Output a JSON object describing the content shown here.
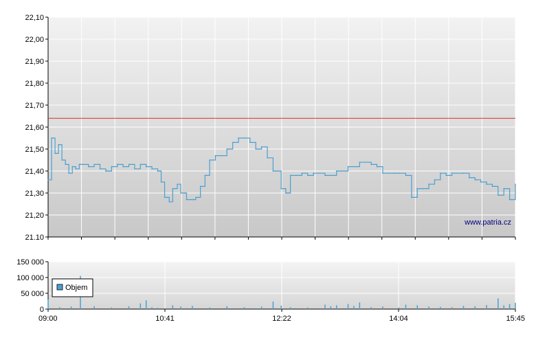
{
  "chart_data": [
    {
      "type": "line",
      "ylim": [
        21.1,
        22.1
      ],
      "y_ticks": [
        "22,10",
        "22,00",
        "21,90",
        "21,80",
        "21,70",
        "21,60",
        "21,50",
        "21,40",
        "21,30",
        "21,20",
        "21.10"
      ],
      "x_ticks": [
        "09:00",
        "10:41",
        "12:22",
        "14:04",
        "15:45"
      ],
      "reference_line": {
        "value": 21.64,
        "color": "#d03030"
      },
      "series_color": "#4aa0d0",
      "grid": true,
      "watermark": "www.patria.cz",
      "series": [
        {
          "x": [
            "09:00",
            "09:03",
            "09:06",
            "09:09",
            "09:12",
            "09:15",
            "09:18",
            "09:21",
            "09:24",
            "09:27",
            "09:30",
            "09:35",
            "09:40",
            "09:45",
            "09:50",
            "09:55",
            "10:00",
            "10:05",
            "10:10",
            "10:15",
            "10:20",
            "10:25",
            "10:30",
            "10:35",
            "10:38",
            "10:41",
            "10:45",
            "10:48",
            "10:52",
            "10:55",
            "11:00",
            "11:05",
            "11:08",
            "11:12",
            "11:16",
            "11:20",
            "11:25",
            "11:30",
            "11:35",
            "11:40",
            "11:45",
            "11:50",
            "11:55",
            "12:00",
            "12:05",
            "12:10",
            "12:15",
            "12:22",
            "12:26",
            "12:30",
            "12:35",
            "12:40",
            "12:45",
            "12:50",
            "13:00",
            "13:10",
            "13:20",
            "13:30",
            "13:40",
            "13:45",
            "13:50",
            "14:00",
            "14:04",
            "14:10",
            "14:15",
            "14:20",
            "14:25",
            "14:30",
            "14:35",
            "14:40",
            "14:45",
            "14:50",
            "15:00",
            "15:05",
            "15:10",
            "15:15",
            "15:20",
            "15:25",
            "15:30",
            "15:35",
            "15:40",
            "15:45"
          ],
          "values": [
            21.36,
            21.55,
            21.48,
            21.52,
            21.45,
            21.43,
            21.39,
            21.42,
            21.41,
            21.43,
            21.43,
            21.42,
            21.43,
            21.41,
            21.4,
            21.42,
            21.43,
            21.42,
            21.43,
            21.41,
            21.43,
            21.42,
            21.41,
            21.4,
            21.35,
            21.28,
            21.26,
            21.32,
            21.34,
            21.3,
            21.27,
            21.27,
            21.28,
            21.33,
            21.38,
            21.45,
            21.47,
            21.47,
            21.5,
            21.53,
            21.55,
            21.55,
            21.53,
            21.5,
            21.51,
            21.46,
            21.4,
            21.32,
            21.3,
            21.38,
            21.38,
            21.39,
            21.38,
            21.39,
            21.38,
            21.4,
            21.42,
            21.44,
            21.43,
            21.42,
            21.39,
            21.39,
            21.39,
            21.38,
            21.28,
            21.32,
            21.32,
            21.34,
            21.36,
            21.39,
            21.38,
            21.39,
            21.39,
            21.37,
            21.36,
            21.35,
            21.34,
            21.33,
            21.29,
            21.32,
            21.27,
            21.34
          ]
        }
      ]
    },
    {
      "type": "bar",
      "ylim": [
        0,
        150000
      ],
      "y_ticks": [
        "150 000",
        "100 000",
        "50 000",
        "0"
      ],
      "x_ticks": [
        "09:00",
        "10:41",
        "12:22",
        "14:04",
        "15:45"
      ],
      "legend": [
        "Objem"
      ],
      "series_color": "#4aa0d0",
      "grid": true,
      "series": [
        {
          "name": "Objem",
          "x": [
            "09:00",
            "09:10",
            "09:20",
            "09:28",
            "09:40",
            "09:55",
            "10:10",
            "10:20",
            "10:25",
            "10:30",
            "10:35",
            "10:48",
            "10:55",
            "11:05",
            "11:20",
            "11:35",
            "11:50",
            "12:05",
            "12:15",
            "12:22",
            "12:30",
            "12:45",
            "13:00",
            "13:05",
            "13:10",
            "13:20",
            "13:25",
            "13:30",
            "13:40",
            "13:50",
            "14:04",
            "14:10",
            "14:20",
            "14:30",
            "14:40",
            "14:50",
            "15:00",
            "15:10",
            "15:20",
            "15:30",
            "15:35",
            "15:40",
            "15:45"
          ],
          "values": [
            30000,
            6000,
            8000,
            105000,
            9000,
            5000,
            9000,
            18000,
            28000,
            6000,
            4000,
            12000,
            8000,
            10000,
            5000,
            9000,
            6000,
            8000,
            24000,
            11000,
            6000,
            5000,
            14000,
            9000,
            12000,
            16000,
            10000,
            21000,
            6000,
            8000,
            5000,
            14000,
            12000,
            8000,
            7000,
            6000,
            10000,
            9000,
            13000,
            34000,
            12000,
            16000,
            20000
          ]
        }
      ]
    }
  ]
}
